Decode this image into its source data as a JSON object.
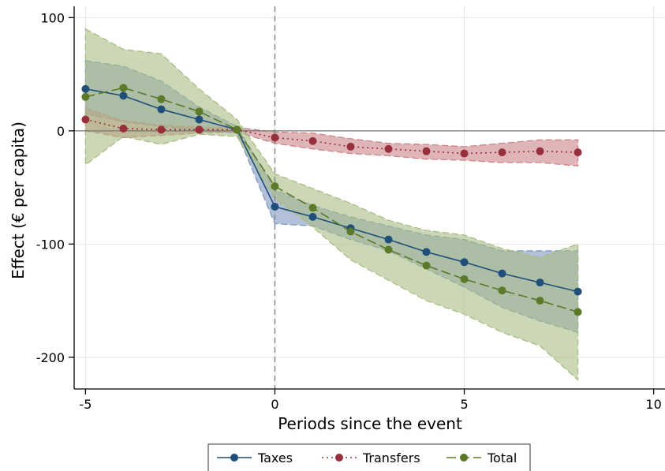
{
  "chart_data": {
    "type": "line",
    "xlabel": "Periods since the event",
    "ylabel": "Effect (€ per capita)",
    "xlim": [
      -5.3,
      10.3
    ],
    "ylim": [
      -228,
      110
    ],
    "x_ticks": [
      -5,
      0,
      5,
      10
    ],
    "y_ticks": [
      100,
      0,
      -100,
      -200
    ],
    "x_tick_labels": [
      "-5",
      "0",
      "5",
      "10"
    ],
    "y_tick_labels": [
      "100",
      "0",
      "-100",
      "-200"
    ],
    "grid": true,
    "event_line_x": 0,
    "zero_line_y": 0,
    "legend": {
      "placement": "bottom-center",
      "entries": [
        "Taxes",
        "Transfers",
        "Total"
      ]
    },
    "series": [
      {
        "name": "Taxes",
        "color": "#1f4e79",
        "fill": "#7f98bf",
        "line_style": "solid",
        "x": [
          -5,
          -4,
          -3,
          -2,
          -1,
          0,
          1,
          2,
          3,
          4,
          5,
          6,
          7,
          8
        ],
        "y": [
          37,
          31,
          19,
          10,
          1,
          -67,
          -76,
          -86,
          -96,
          -107,
          -116,
          -126,
          -134,
          -142
        ],
        "ci_lower": [
          15,
          8,
          4,
          0,
          -2,
          -82,
          -84,
          -96,
          -106,
          -122,
          -138,
          -156,
          -168,
          -178
        ],
        "ci_upper": [
          62,
          57,
          44,
          21,
          4,
          -52,
          -66,
          -76,
          -84,
          -92,
          -96,
          -106,
          -106,
          -106
        ]
      },
      {
        "name": "Transfers",
        "color": "#96303a",
        "fill": "#c98488",
        "line_style": "dotted",
        "x": [
          -5,
          -4,
          -3,
          -2,
          -1,
          0,
          1,
          2,
          3,
          4,
          5,
          6,
          7,
          8
        ],
        "y": [
          10,
          2,
          1,
          1,
          1,
          -6,
          -9,
          -14,
          -16,
          -18,
          -20,
          -19,
          -18,
          -19
        ],
        "ci_lower": [
          0,
          -6,
          -4,
          -2,
          -1,
          -11,
          -16,
          -20,
          -22,
          -25,
          -26,
          -28,
          -28,
          -31
        ],
        "ci_upper": [
          20,
          9,
          5,
          3,
          3,
          -1,
          -2,
          -7,
          -11,
          -12,
          -14,
          -11,
          -8,
          -8
        ]
      },
      {
        "name": "Total",
        "color": "#5a7a2a",
        "fill": "#a9bd83",
        "line_style": "dashed",
        "x": [
          -5,
          -4,
          -3,
          -2,
          -1,
          0,
          1,
          2,
          3,
          4,
          5,
          6,
          7,
          8
        ],
        "y": [
          30,
          38,
          28,
          17,
          1,
          -49,
          -68,
          -89,
          -105,
          -119,
          -131,
          -141,
          -150,
          -160
        ],
        "ci_lower": [
          -30,
          -5,
          -12,
          -3,
          -5,
          -60,
          -85,
          -114,
          -132,
          -150,
          -162,
          -178,
          -190,
          -220
        ],
        "ci_upper": [
          90,
          72,
          68,
          37,
          10,
          -38,
          -51,
          -64,
          -79,
          -88,
          -92,
          -104,
          -112,
          -100
        ]
      }
    ]
  }
}
